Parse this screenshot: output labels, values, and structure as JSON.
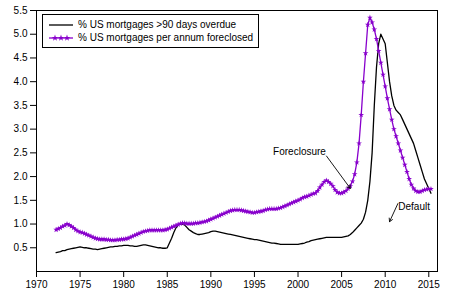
{
  "chart_data": {
    "type": "line",
    "xlim": [
      1970,
      2016
    ],
    "ylim": [
      0,
      5.5
    ],
    "xticks": [
      1970,
      1975,
      1980,
      1985,
      1990,
      1995,
      2000,
      2005,
      2010,
      2015
    ],
    "yticks": [
      0.5,
      {
        "value": 1,
        "label": "1.0"
      },
      1.5,
      {
        "value": 2,
        "label": "2.0"
      },
      2.5,
      {
        "value": 3,
        "label": "3.0"
      },
      3.5,
      {
        "value": 4,
        "label": "4.0"
      },
      4.5,
      {
        "value": 5,
        "label": "5.0"
      },
      5.5
    ],
    "grid": false,
    "legend": "upper left",
    "x": [
      1972.25,
      1972.5,
      1972.75,
      1973.0,
      1973.25,
      1973.5,
      1973.75,
      1974.0,
      1974.25,
      1974.5,
      1974.75,
      1975.0,
      1975.25,
      1975.5,
      1975.75,
      1976.0,
      1976.25,
      1976.5,
      1976.75,
      1977.0,
      1977.25,
      1977.5,
      1977.75,
      1978.0,
      1978.25,
      1978.5,
      1978.75,
      1979.0,
      1979.25,
      1979.5,
      1979.75,
      1980.0,
      1980.25,
      1980.5,
      1980.75,
      1981.0,
      1981.25,
      1981.5,
      1981.75,
      1982.0,
      1982.25,
      1982.5,
      1982.75,
      1983.0,
      1983.25,
      1983.5,
      1983.75,
      1984.0,
      1984.25,
      1984.5,
      1984.75,
      1985.0,
      1985.25,
      1985.5,
      1985.75,
      1986.0,
      1986.25,
      1986.5,
      1986.75,
      1987.0,
      1987.25,
      1987.5,
      1987.75,
      1988.0,
      1988.25,
      1988.5,
      1988.75,
      1989.0,
      1989.25,
      1989.5,
      1989.75,
      1990.0,
      1990.25,
      1990.5,
      1990.75,
      1991.0,
      1991.25,
      1991.5,
      1991.75,
      1992.0,
      1992.25,
      1992.5,
      1992.75,
      1993.0,
      1993.25,
      1993.5,
      1993.75,
      1994.0,
      1994.25,
      1994.5,
      1994.75,
      1995.0,
      1995.25,
      1995.5,
      1995.75,
      1996.0,
      1996.25,
      1996.5,
      1996.75,
      1997.0,
      1997.25,
      1997.5,
      1997.75,
      1998.0,
      1998.25,
      1998.5,
      1998.75,
      1999.0,
      1999.25,
      1999.5,
      1999.75,
      2000.0,
      2000.25,
      2000.5,
      2000.75,
      2001.0,
      2001.25,
      2001.5,
      2001.75,
      2002.0,
      2002.25,
      2002.5,
      2002.75,
      2003.0,
      2003.25,
      2003.5,
      2003.75,
      2004.0,
      2004.25,
      2004.5,
      2004.75,
      2005.0,
      2005.25,
      2005.5,
      2005.75,
      2006.0,
      2006.25,
      2006.5,
      2006.75,
      2007.0,
      2007.25,
      2007.5,
      2007.75,
      2008.0,
      2008.25,
      2008.5,
      2008.75,
      2009.0,
      2009.25,
      2009.5,
      2009.75,
      2010.0,
      2010.25,
      2010.5,
      2010.75,
      2011.0,
      2011.25,
      2011.5,
      2011.75,
      2012.0,
      2012.25,
      2012.5,
      2012.75,
      2013.0,
      2013.25,
      2013.5,
      2013.75,
      2014.0,
      2014.25,
      2014.5,
      2014.75,
      2015.0,
      2015.25
    ],
    "series": [
      {
        "name": "% US mortgages >90 days overdue",
        "color": "#000000",
        "line_style": "solid",
        "values": [
          0.4,
          0.41,
          0.42,
          0.44,
          0.44,
          0.46,
          0.47,
          0.48,
          0.49,
          0.5,
          0.51,
          0.52,
          0.51,
          0.5,
          0.5,
          0.49,
          0.48,
          0.47,
          0.47,
          0.46,
          0.47,
          0.48,
          0.49,
          0.5,
          0.51,
          0.52,
          0.52,
          0.53,
          0.53,
          0.54,
          0.54,
          0.55,
          0.55,
          0.55,
          0.54,
          0.54,
          0.53,
          0.53,
          0.54,
          0.55,
          0.56,
          0.56,
          0.55,
          0.54,
          0.53,
          0.52,
          0.51,
          0.5,
          0.5,
          0.49,
          0.49,
          0.5,
          0.6,
          0.7,
          0.82,
          0.92,
          0.98,
          1.0,
          1.0,
          0.98,
          0.93,
          0.88,
          0.85,
          0.82,
          0.8,
          0.78,
          0.78,
          0.79,
          0.8,
          0.81,
          0.82,
          0.84,
          0.85,
          0.85,
          0.84,
          0.83,
          0.82,
          0.81,
          0.8,
          0.79,
          0.78,
          0.77,
          0.76,
          0.75,
          0.74,
          0.73,
          0.72,
          0.71,
          0.7,
          0.69,
          0.68,
          0.67,
          0.67,
          0.66,
          0.65,
          0.64,
          0.63,
          0.62,
          0.61,
          0.6,
          0.6,
          0.59,
          0.58,
          0.57,
          0.57,
          0.57,
          0.57,
          0.57,
          0.57,
          0.57,
          0.57,
          0.57,
          0.58,
          0.59,
          0.6,
          0.62,
          0.63,
          0.65,
          0.66,
          0.67,
          0.68,
          0.69,
          0.7,
          0.71,
          0.72,
          0.72,
          0.72,
          0.72,
          0.72,
          0.72,
          0.72,
          0.72,
          0.73,
          0.74,
          0.75,
          0.78,
          0.82,
          0.87,
          0.92,
          0.97,
          1.02,
          1.1,
          1.25,
          1.5,
          1.9,
          2.5,
          3.5,
          4.3,
          4.8,
          5.0,
          4.9,
          4.8,
          4.4,
          4.0,
          3.7,
          3.5,
          3.4,
          3.35,
          3.3,
          3.2,
          3.1,
          3.0,
          2.9,
          2.8,
          2.7,
          2.55,
          2.4,
          2.25,
          2.1,
          1.95,
          1.85,
          1.75,
          1.65
        ]
      },
      {
        "name": "% US mortgages per annum foreclosed",
        "color": "#8800cc",
        "line_style": "solid",
        "marker": "star",
        "values": [
          0.88,
          0.9,
          0.92,
          0.95,
          0.97,
          1.0,
          0.98,
          0.95,
          0.92,
          0.88,
          0.85,
          0.83,
          0.82,
          0.8,
          0.78,
          0.76,
          0.74,
          0.72,
          0.7,
          0.69,
          0.68,
          0.68,
          0.68,
          0.67,
          0.67,
          0.66,
          0.66,
          0.66,
          0.67,
          0.67,
          0.68,
          0.68,
          0.69,
          0.7,
          0.72,
          0.74,
          0.76,
          0.78,
          0.8,
          0.82,
          0.84,
          0.85,
          0.86,
          0.87,
          0.87,
          0.87,
          0.87,
          0.87,
          0.87,
          0.87,
          0.88,
          0.89,
          0.91,
          0.93,
          0.95,
          0.97,
          0.99,
          1.01,
          1.02,
          1.02,
          1.01,
          1.01,
          1.01,
          1.01,
          1.02,
          1.02,
          1.03,
          1.04,
          1.05,
          1.06,
          1.08,
          1.1,
          1.12,
          1.14,
          1.16,
          1.18,
          1.2,
          1.22,
          1.24,
          1.26,
          1.28,
          1.29,
          1.3,
          1.3,
          1.3,
          1.29,
          1.28,
          1.27,
          1.26,
          1.25,
          1.24,
          1.24,
          1.25,
          1.26,
          1.27,
          1.28,
          1.3,
          1.31,
          1.32,
          1.32,
          1.32,
          1.32,
          1.33,
          1.34,
          1.36,
          1.38,
          1.4,
          1.42,
          1.44,
          1.46,
          1.48,
          1.5,
          1.52,
          1.55,
          1.57,
          1.58,
          1.6,
          1.62,
          1.64,
          1.65,
          1.7,
          1.77,
          1.83,
          1.89,
          1.92,
          1.89,
          1.85,
          1.8,
          1.72,
          1.67,
          1.65,
          1.65,
          1.67,
          1.7,
          1.75,
          1.8,
          1.9,
          2.05,
          2.3,
          2.7,
          3.3,
          4.0,
          4.6,
          5.2,
          5.35,
          5.25,
          5.1,
          4.9,
          4.65,
          4.4,
          4.15,
          3.9,
          3.65,
          3.42,
          3.2,
          3.0,
          2.85,
          2.7,
          2.55,
          2.4,
          2.25,
          2.1,
          1.95,
          1.83,
          1.75,
          1.7,
          1.68,
          1.68,
          1.7,
          1.72,
          1.73,
          1.74,
          1.74
        ]
      }
    ],
    "annotations": [
      {
        "text": "Foreclosure",
        "x": 2003.2,
        "y": 2.45,
        "arrow_x": 2006.0,
        "arrow_y": 1.75
      },
      {
        "text": "Default",
        "x": 2011.5,
        "y": 1.45,
        "arrow_x": 2010.5,
        "arrow_y": 1.05
      }
    ]
  }
}
